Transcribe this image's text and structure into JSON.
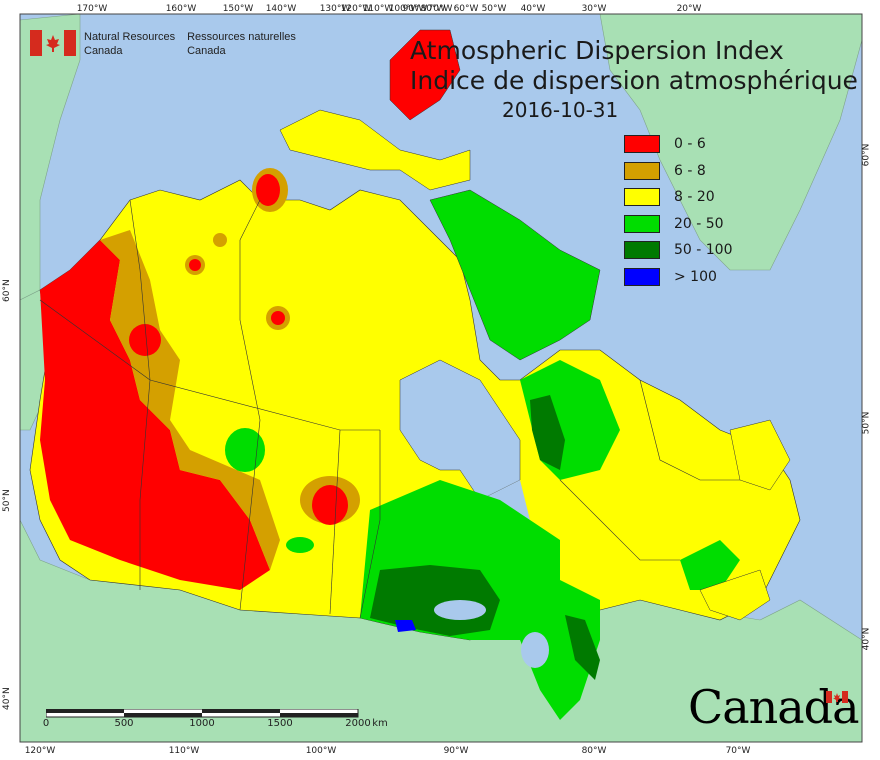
{
  "title": {
    "en": "Atmospheric Dispersion Index",
    "fr": "Indice de dispersion atmosphérique",
    "date": "2016-10-31"
  },
  "agency": {
    "en_line1": "Natural Resources",
    "en_line2": "Canada",
    "fr_line1": "Ressources naturelles",
    "fr_line2": "Canada"
  },
  "legend": [
    {
      "label": "0 - 6",
      "color": "#ff0000"
    },
    {
      "label": "6 - 8",
      "color": "#d4a000"
    },
    {
      "label": "8 - 20",
      "color": "#ffff00"
    },
    {
      "label": "20 - 50",
      "color": "#00dd00"
    },
    {
      "label": "50 - 100",
      "color": "#007a00"
    },
    {
      "label": "> 100",
      "color": "#0000ff"
    }
  ],
  "graticule": {
    "top": [
      "170°W",
      "160°W",
      "150°W",
      "140°W",
      "130°W",
      "120°W",
      "110°W",
      "100°W",
      "90°W",
      "80°W",
      "70°W",
      "60°W",
      "50°W",
      "40°W",
      "30°W",
      "20°W"
    ],
    "bottom": [
      "120°W",
      "110°W",
      "100°W",
      "90°W",
      "80°W",
      "70°W"
    ],
    "left": [
      "60°N",
      "50°N",
      "40°N"
    ],
    "right": [
      "60°N",
      "50°N",
      "40°N"
    ]
  },
  "scale_bar": {
    "labels": [
      "0",
      "500",
      "1000",
      "1500",
      "2000"
    ],
    "unit": "km"
  },
  "wordmark": "Canada",
  "colors": {
    "ocean": "#a9c9ec",
    "foreign_land": "#a8e0b4",
    "border": "#333333"
  }
}
